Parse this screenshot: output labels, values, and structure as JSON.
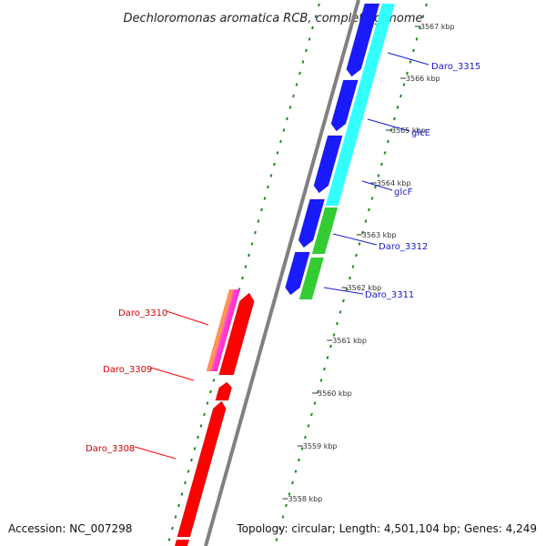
{
  "title": "Dechloromonas aromatica RCB, complete genome",
  "accession": "Accession: NC_007298",
  "stats": "Topology: circular; Length: 4,501,104 bp; Genes: 4,249",
  "axis": {
    "unit": "kbp",
    "tick_labels": [
      "3558 kbp",
      "3559 kbp",
      "3560 kbp",
      "3561 kbp",
      "3562 kbp",
      "3563 kbp",
      "3564 kbp",
      "3565 kbp",
      "3566 kbp",
      "3567 kbp"
    ]
  },
  "genes": [
    {
      "label": "Daro_3308",
      "strand": "reverse",
      "color": "#ff0000"
    },
    {
      "label": "Daro_3309",
      "strand": "reverse",
      "color": "#ff0000"
    },
    {
      "label": "Daro_3310",
      "strand": "reverse",
      "color": "#ff0000"
    },
    {
      "label": "Daro_3311",
      "strand": "forward",
      "color": "#1a1aff"
    },
    {
      "label": "Daro_3312",
      "strand": "forward",
      "color": "#1a1aff"
    },
    {
      "label": "glcF",
      "strand": "forward",
      "color": "#1a1aff"
    },
    {
      "label": "glcE",
      "strand": "forward",
      "color": "#1a1aff"
    },
    {
      "label": "Daro_3315",
      "strand": "forward",
      "color": "#1a1aff"
    }
  ],
  "colors": {
    "forward_gene": "#1a1aff",
    "reverse_gene": "#ff0000",
    "feature_cyan": "#33ffff",
    "feature_green": "#33cc33",
    "feature_magenta": "#ff33cc",
    "feature_orange": "#ff9933",
    "backbone": "#808080",
    "dotted_track": "#228822"
  }
}
